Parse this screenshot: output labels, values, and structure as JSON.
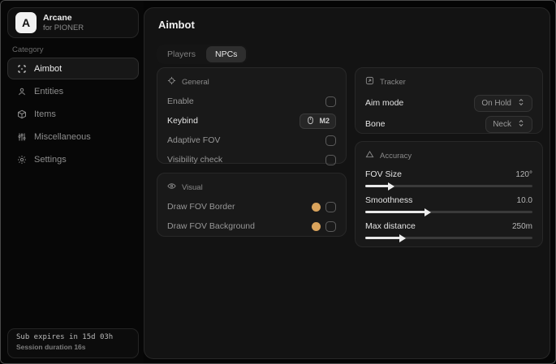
{
  "colors": {
    "accent_swatch": "#d9a35c"
  },
  "sidebar": {
    "logo_letter": "A",
    "app_name": "Arcane",
    "app_subtitle": "for PIONER",
    "category_label": "Category",
    "items": [
      {
        "label": "Aimbot",
        "active": true
      },
      {
        "label": "Entities",
        "active": false
      },
      {
        "label": "Items",
        "active": false
      },
      {
        "label": "Miscellaneous",
        "active": false
      },
      {
        "label": "Settings",
        "active": false
      }
    ],
    "footer": {
      "line1": "Sub expires in 15d 03h",
      "line2": "Session duration 16s"
    }
  },
  "main": {
    "title": "Aimbot",
    "tabs": {
      "players": "Players",
      "npcs": "NPCs"
    },
    "general": {
      "title": "General",
      "enable_label": "Enable",
      "keybind_label": "Keybind",
      "keybind_value": "M2",
      "adaptive_fov_label": "Adaptive FOV",
      "visibility_check_label": "Visibility check"
    },
    "visual": {
      "title": "Visual",
      "fov_border_label": "Draw FOV Border",
      "fov_background_label": "Draw FOV Background"
    },
    "tracker": {
      "title": "Tracker",
      "aim_mode_label": "Aim mode",
      "aim_mode_value": "On Hold",
      "bone_label": "Bone",
      "bone_value": "Neck"
    },
    "accuracy": {
      "title": "Accuracy",
      "sliders": [
        {
          "label": "FOV Size",
          "value": "120°",
          "fill_pct": 14
        },
        {
          "label": "Smoothness",
          "value": "10.0",
          "fill_pct": 36
        },
        {
          "label": "Max distance",
          "value": "250m",
          "fill_pct": 21
        }
      ]
    }
  }
}
